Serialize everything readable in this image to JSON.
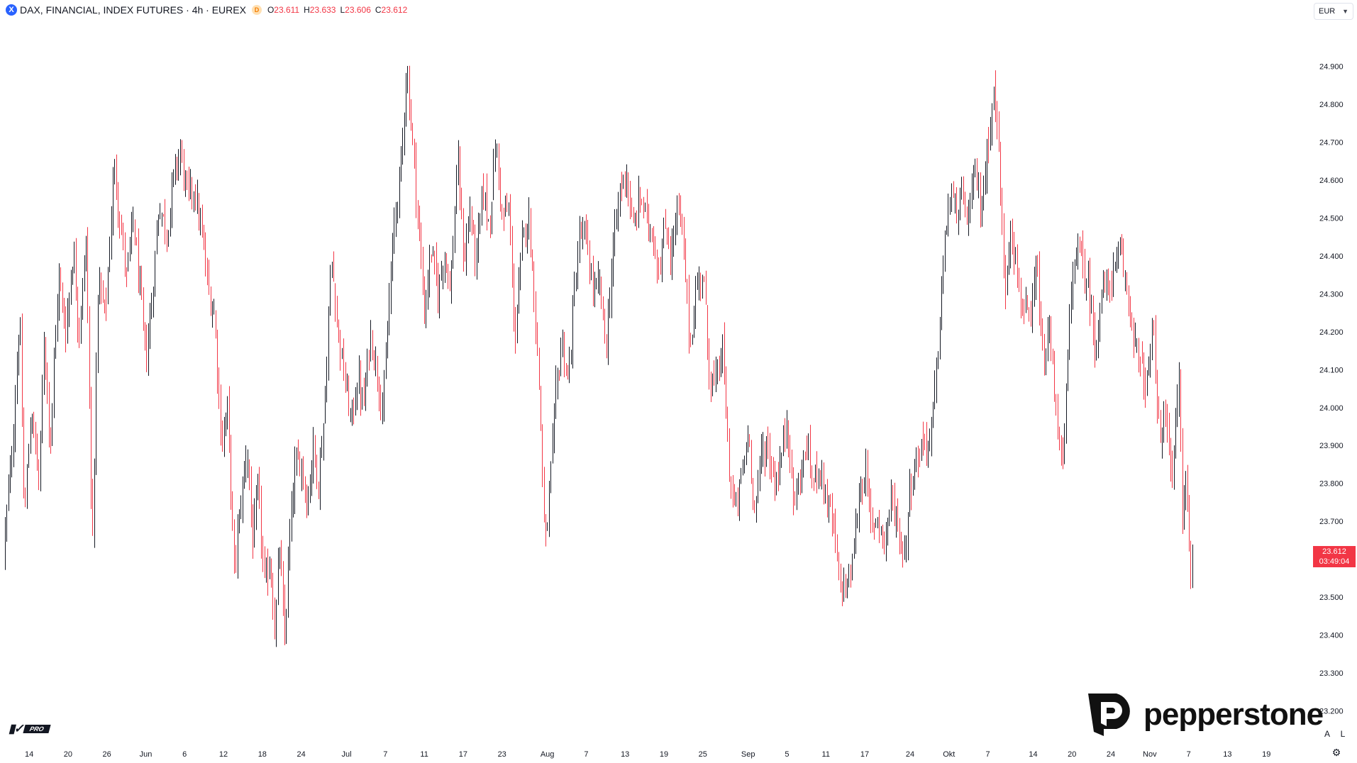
{
  "header": {
    "symbol_icon": "X",
    "title": "DAX, FINANCIAL, INDEX FUTURES · 4h · EUREX",
    "data_badge": "D",
    "ohlc": {
      "o_label": "O",
      "o": "23.611",
      "h_label": "H",
      "h": "23.633",
      "l_label": "L",
      "l": "23.606",
      "c_label": "C",
      "c": "23.612"
    },
    "currency": "EUR"
  },
  "price_label": {
    "price": "23.612",
    "countdown": "03:49:04"
  },
  "bottom_buttons": {
    "auto": "A",
    "log": "L"
  },
  "brand": {
    "tv_pro": "PRO",
    "pepperstone": "pepperstone"
  },
  "colors": {
    "up": "#131722",
    "down": "#f23645",
    "background": "#ffffff",
    "axis_text": "#131722",
    "label_bg": "#f23645"
  },
  "chart_data": {
    "type": "candlestick",
    "ylim": [
      23130,
      25000
    ],
    "y_ticks": [
      {
        "label": "24.900",
        "value": 24900
      },
      {
        "label": "24.800",
        "value": 24800
      },
      {
        "label": "24.700",
        "value": 24700
      },
      {
        "label": "24.600",
        "value": 24600
      },
      {
        "label": "24.500",
        "value": 24500
      },
      {
        "label": "24.400",
        "value": 24400
      },
      {
        "label": "24.300",
        "value": 24300
      },
      {
        "label": "24.200",
        "value": 24200
      },
      {
        "label": "24.100",
        "value": 24100
      },
      {
        "label": "24.000",
        "value": 24000
      },
      {
        "label": "23.900",
        "value": 23900
      },
      {
        "label": "23.800",
        "value": 23800
      },
      {
        "label": "23.700",
        "value": 23700
      },
      {
        "label": "23.600",
        "value": 23600
      },
      {
        "label": "23.500",
        "value": 23500
      },
      {
        "label": "23.400",
        "value": 23400
      },
      {
        "label": "23.300",
        "value": 23300
      },
      {
        "label": "23.200",
        "value": 23200
      }
    ],
    "x_ticks": [
      {
        "label": "14",
        "day": 0
      },
      {
        "label": "20",
        "day": 6
      },
      {
        "label": "26",
        "day": 12
      },
      {
        "label": "Jun",
        "day": 18
      },
      {
        "label": "6",
        "day": 24
      },
      {
        "label": "12",
        "day": 30
      },
      {
        "label": "18",
        "day": 36
      },
      {
        "label": "24",
        "day": 42
      },
      {
        "label": "Jul",
        "day": 49
      },
      {
        "label": "7",
        "day": 55
      },
      {
        "label": "11",
        "day": 61
      },
      {
        "label": "17",
        "day": 67
      },
      {
        "label": "23",
        "day": 73
      },
      {
        "label": "Aug",
        "day": 80
      },
      {
        "label": "7",
        "day": 86
      },
      {
        "label": "13",
        "day": 92
      },
      {
        "label": "19",
        "day": 98
      },
      {
        "label": "25",
        "day": 104
      },
      {
        "label": "Sep",
        "day": 111
      },
      {
        "label": "5",
        "day": 117
      },
      {
        "label": "11",
        "day": 123
      },
      {
        "label": "17",
        "day": 129
      },
      {
        "label": "24",
        "day": 136
      },
      {
        "label": "Okt",
        "day": 142
      },
      {
        "label": "7",
        "day": 148
      },
      {
        "label": "14",
        "day": 155
      },
      {
        "label": "20",
        "day": 161
      },
      {
        "label": "24",
        "day": 167
      },
      {
        "label": "Nov",
        "day": 173
      },
      {
        "label": "7",
        "day": 179
      },
      {
        "label": "13",
        "day": 185
      },
      {
        "label": "19",
        "day": 191
      }
    ],
    "x_range_days": [
      -4.5,
      197
    ],
    "last_candle_day": 179.8,
    "anchors": [
      [
        -4.0,
        23620
      ],
      [
        -2.6,
        23900
      ],
      [
        -1.5,
        24250
      ],
      [
        -0.8,
        23700
      ],
      [
        0.3,
        24000
      ],
      [
        1.5,
        23800
      ],
      [
        2.3,
        24200
      ],
      [
        3.2,
        23900
      ],
      [
        4.5,
        24350
      ],
      [
        5.6,
        24200
      ],
      [
        6.8,
        24420
      ],
      [
        7.6,
        24200
      ],
      [
        8.8,
        24440
      ],
      [
        9.7,
        23600
      ],
      [
        10.6,
        24340
      ],
      [
        11.7,
        24240
      ],
      [
        13.1,
        24640
      ],
      [
        14.2,
        24460
      ],
      [
        15.0,
        24340
      ],
      [
        16.0,
        24500
      ],
      [
        17.0,
        24320
      ],
      [
        18.0,
        24120
      ],
      [
        19.0,
        24300
      ],
      [
        20.0,
        24540
      ],
      [
        21.3,
        24460
      ],
      [
        22.2,
        24600
      ],
      [
        23.3,
        24680
      ],
      [
        24.3,
        24560
      ],
      [
        25.4,
        24580
      ],
      [
        26.6,
        24460
      ],
      [
        27.7,
        24300
      ],
      [
        28.6,
        24240
      ],
      [
        29.7,
        23900
      ],
      [
        30.6,
        24000
      ],
      [
        31.6,
        23570
      ],
      [
        32.6,
        23740
      ],
      [
        33.6,
        23900
      ],
      [
        34.5,
        23640
      ],
      [
        35.3,
        23790
      ],
      [
        36.3,
        23530
      ],
      [
        37.2,
        23600
      ],
      [
        37.9,
        23400
      ],
      [
        38.6,
        23640
      ],
      [
        39.4,
        23380
      ],
      [
        40.1,
        23640
      ],
      [
        41.0,
        23840
      ],
      [
        42.0,
        23860
      ],
      [
        42.9,
        23740
      ],
      [
        43.8,
        23900
      ],
      [
        44.6,
        23800
      ],
      [
        45.6,
        24000
      ],
      [
        46.6,
        24400
      ],
      [
        47.8,
        24180
      ],
      [
        48.8,
        24060
      ],
      [
        49.7,
        23960
      ],
      [
        50.7,
        24080
      ],
      [
        51.6,
        24000
      ],
      [
        52.6,
        24200
      ],
      [
        53.6,
        24100
      ],
      [
        54.6,
        23990
      ],
      [
        55.6,
        24300
      ],
      [
        56.5,
        24520
      ],
      [
        57.4,
        24640
      ],
      [
        58.2,
        24900
      ],
      [
        59.0,
        24740
      ],
      [
        60.0,
        24500
      ],
      [
        61.0,
        24250
      ],
      [
        62.0,
        24420
      ],
      [
        63.1,
        24300
      ],
      [
        64.1,
        24420
      ],
      [
        65.0,
        24300
      ],
      [
        66.1,
        24660
      ],
      [
        67.1,
        24380
      ],
      [
        68.0,
        24520
      ],
      [
        69.0,
        24380
      ],
      [
        70.0,
        24580
      ],
      [
        71.0,
        24480
      ],
      [
        72.0,
        24700
      ],
      [
        73.0,
        24500
      ],
      [
        74.0,
        24520
      ],
      [
        75.0,
        24180
      ],
      [
        76.0,
        24420
      ],
      [
        77.0,
        24520
      ],
      [
        78.0,
        24280
      ],
      [
        78.8,
        24020
      ],
      [
        79.6,
        23620
      ],
      [
        80.4,
        23800
      ],
      [
        81.3,
        24040
      ],
      [
        82.2,
        24180
      ],
      [
        83.2,
        24060
      ],
      [
        84.0,
        24280
      ],
      [
        85.0,
        24460
      ],
      [
        86.0,
        24440
      ],
      [
        87.1,
        24300
      ],
      [
        88.1,
        24320
      ],
      [
        89.0,
        24150
      ],
      [
        90.0,
        24400
      ],
      [
        91.2,
        24580
      ],
      [
        92.2,
        24620
      ],
      [
        93.1,
        24460
      ],
      [
        94.3,
        24560
      ],
      [
        95.2,
        24500
      ],
      [
        96.2,
        24460
      ],
      [
        97.2,
        24360
      ],
      [
        98.2,
        24480
      ],
      [
        99.1,
        24400
      ],
      [
        100.1,
        24540
      ],
      [
        101.0,
        24420
      ],
      [
        102.0,
        24160
      ],
      [
        103.0,
        24320
      ],
      [
        104.0,
        24360
      ],
      [
        105.0,
        24080
      ],
      [
        106.0,
        24060
      ],
      [
        107.0,
        24160
      ],
      [
        108.0,
        23840
      ],
      [
        109.0,
        23720
      ],
      [
        110.0,
        23820
      ],
      [
        111.0,
        23940
      ],
      [
        112.0,
        23720
      ],
      [
        113.0,
        23880
      ],
      [
        114.0,
        23900
      ],
      [
        115.0,
        23800
      ],
      [
        116.0,
        23860
      ],
      [
        117.0,
        23980
      ],
      [
        118.0,
        23740
      ],
      [
        119.0,
        23820
      ],
      [
        120.0,
        23900
      ],
      [
        121.0,
        23800
      ],
      [
        122.0,
        23860
      ],
      [
        123.0,
        23760
      ],
      [
        124.0,
        23700
      ],
      [
        125.0,
        23540
      ],
      [
        126.0,
        23520
      ],
      [
        127.0,
        23580
      ],
      [
        128.0,
        23760
      ],
      [
        129.0,
        23840
      ],
      [
        130.0,
        23680
      ],
      [
        131.0,
        23720
      ],
      [
        132.0,
        23640
      ],
      [
        133.0,
        23760
      ],
      [
        134.0,
        23700
      ],
      [
        135.0,
        23600
      ],
      [
        136.0,
        23800
      ],
      [
        137.0,
        23860
      ],
      [
        138.0,
        23920
      ],
      [
        139.0,
        23900
      ],
      [
        140.0,
        24080
      ],
      [
        141.0,
        24360
      ],
      [
        142.0,
        24560
      ],
      [
        143.0,
        24520
      ],
      [
        144.0,
        24540
      ],
      [
        145.0,
        24500
      ],
      [
        146.0,
        24620
      ],
      [
        147.0,
        24520
      ],
      [
        148.0,
        24700
      ],
      [
        148.8,
        24840
      ],
      [
        149.6,
        24700
      ],
      [
        150.6,
        24300
      ],
      [
        151.5,
        24500
      ],
      [
        152.5,
        24340
      ],
      [
        153.5,
        24260
      ],
      [
        154.5,
        24200
      ],
      [
        155.5,
        24380
      ],
      [
        156.5,
        24100
      ],
      [
        157.5,
        24200
      ],
      [
        158.5,
        24000
      ],
      [
        159.5,
        23820
      ],
      [
        160.5,
        24200
      ],
      [
        161.5,
        24440
      ],
      [
        162.5,
        24380
      ],
      [
        163.5,
        24320
      ],
      [
        164.5,
        24160
      ],
      [
        165.5,
        24300
      ],
      [
        166.5,
        24320
      ],
      [
        167.5,
        24360
      ],
      [
        168.5,
        24400
      ],
      [
        169.5,
        24300
      ],
      [
        170.5,
        24200
      ],
      [
        171.5,
        24100
      ],
      [
        172.5,
        24060
      ],
      [
        173.5,
        24200
      ],
      [
        174.5,
        23900
      ],
      [
        175.5,
        24000
      ],
      [
        176.5,
        23800
      ],
      [
        177.5,
        24100
      ],
      [
        178.0,
        23700
      ],
      [
        178.6,
        23840
      ],
      [
        179.2,
        23560
      ],
      [
        179.8,
        23612
      ]
    ]
  }
}
